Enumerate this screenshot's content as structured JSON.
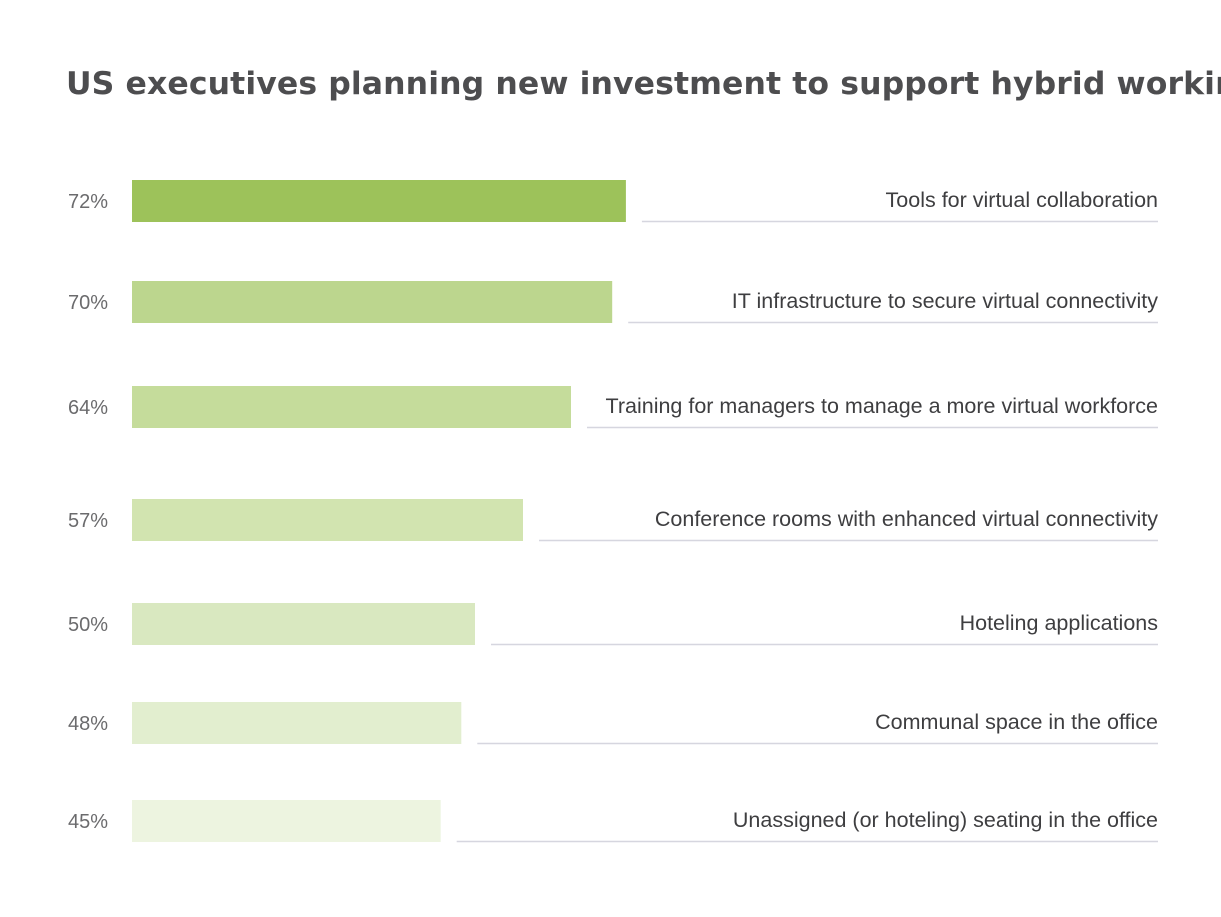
{
  "chart_data": {
    "type": "bar",
    "orientation": "horizontal",
    "title": "US executives planning new investment to support hybrid working",
    "xlabel": "",
    "ylabel": "",
    "value_suffix": "%",
    "xlim": [
      0,
      100
    ],
    "grid": false,
    "legend": "none",
    "categories": [
      "Tools for virtual collaboration",
      "IT infrastructure to secure virtual connectivity",
      "Training for managers to manage a more virtual workforce",
      "Conference rooms with enhanced virtual connectivity",
      "Hoteling applications",
      "Communal space in the office",
      "Unassigned (or hoteling) seating in the office"
    ],
    "values": [
      72,
      70,
      64,
      57,
      50,
      48,
      45
    ],
    "bar_colors": [
      "#9dc25a",
      "#bcd68e",
      "#c5dc9b",
      "#d2e4b0",
      "#d9e8c0",
      "#e2eecf",
      "#edf4e0"
    ]
  },
  "colors": {
    "title_text": "#4d4d4f",
    "value_label_text": "#6b6b6d",
    "category_label_text": "#3e3e40",
    "leader_line": "#d6d6df"
  }
}
